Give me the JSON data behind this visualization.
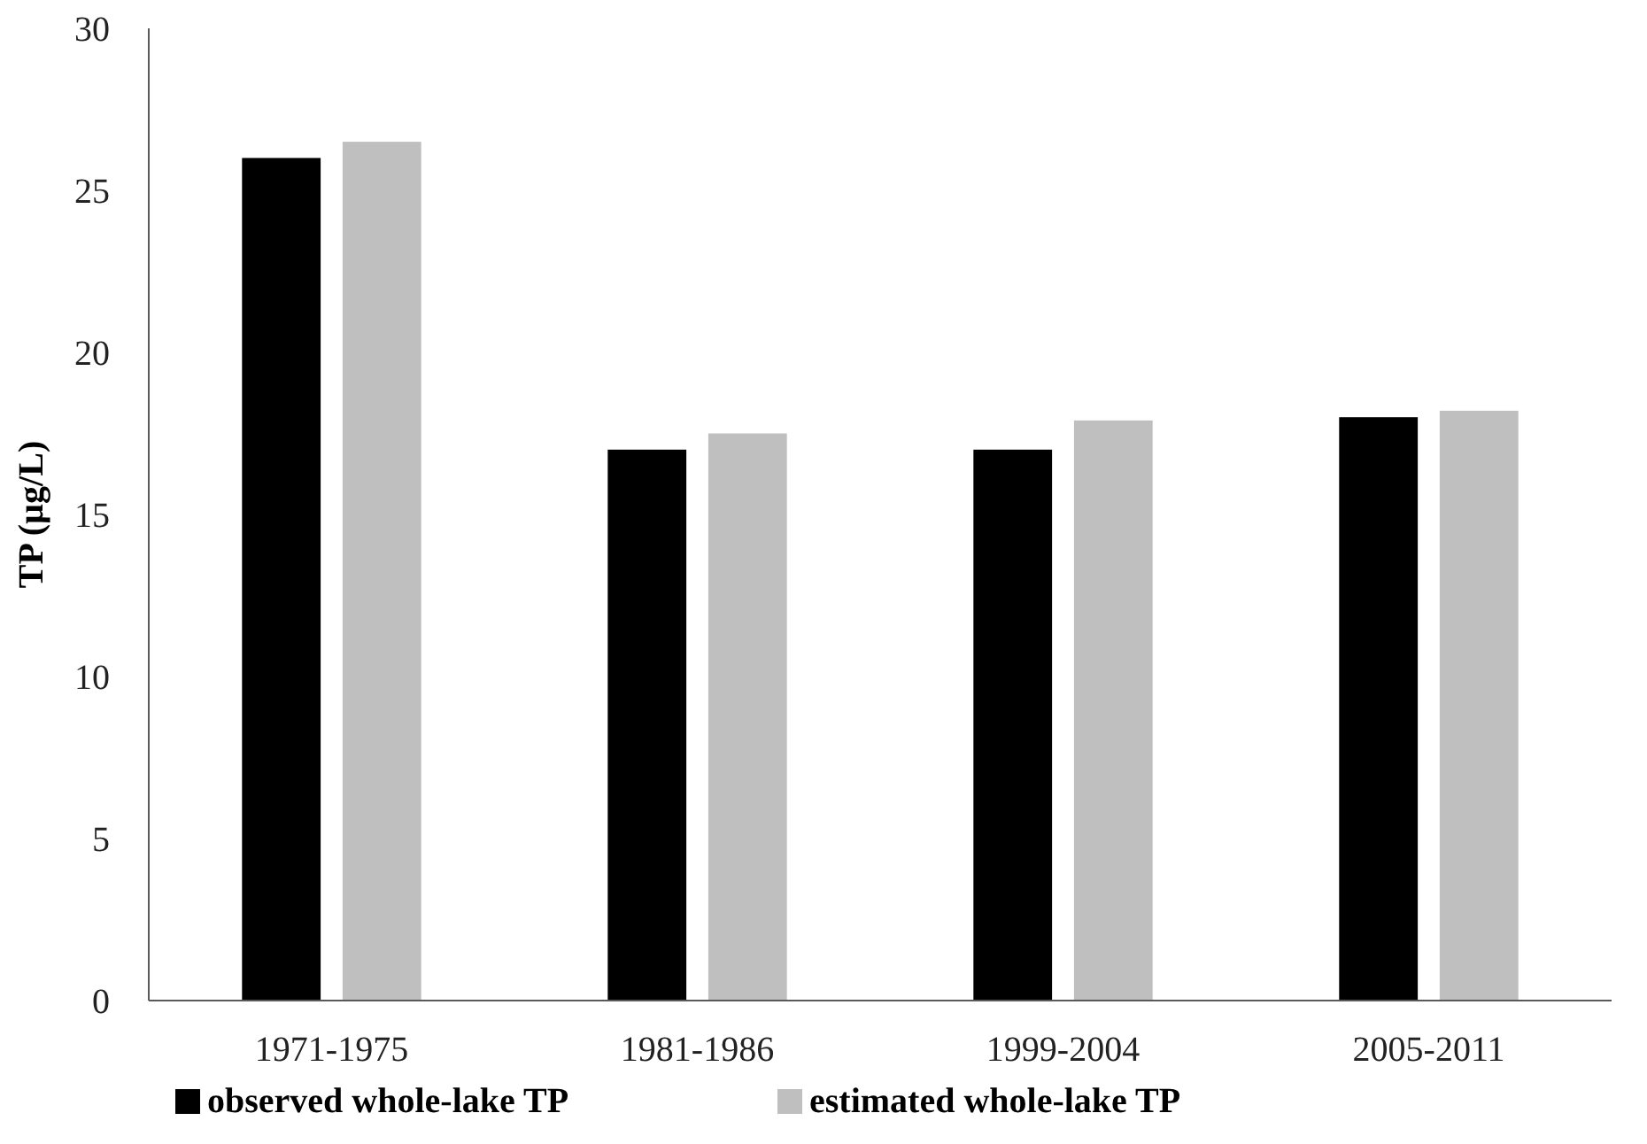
{
  "chart_data": {
    "type": "bar",
    "ylabel": "TP (µg/L)",
    "categories": [
      "1971-1975",
      "1981-1986",
      "1999-2004",
      "2005-2011"
    ],
    "series": [
      {
        "name": "observed whole-lake TP",
        "color": "#000000",
        "values": [
          26.0,
          17.0,
          17.0,
          18.0
        ]
      },
      {
        "name": "estimated whole-lake TP",
        "color": "#bfbfbf",
        "values": [
          26.5,
          17.5,
          17.9,
          18.2
        ]
      }
    ],
    "ylim": [
      0,
      30
    ],
    "yticks": [
      0,
      5,
      10,
      15,
      20,
      25,
      30
    ],
    "grid": false,
    "legend": "bottom"
  }
}
